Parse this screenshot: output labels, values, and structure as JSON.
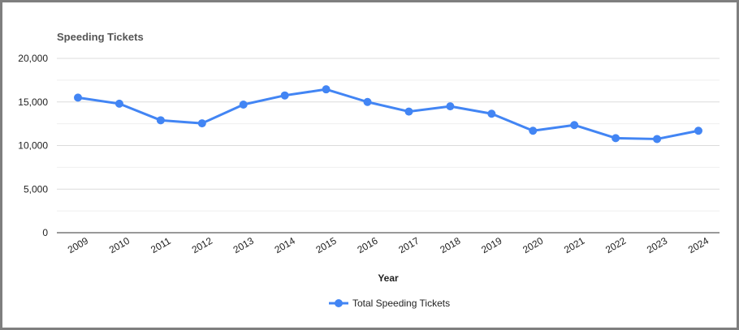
{
  "chart_data": {
    "type": "line",
    "title": "Speeding Tickets",
    "xlabel": "Year",
    "ylabel": "",
    "categories": [
      "2009",
      "2010",
      "2011",
      "2012",
      "2013",
      "2014",
      "2015",
      "2016",
      "2017",
      "2018",
      "2019",
      "2020",
      "2021",
      "2022",
      "2023",
      "2024"
    ],
    "series": [
      {
        "name": "Total Speeding Tickets",
        "values": [
          15500,
          14800,
          12900,
          12550,
          14700,
          15750,
          16450,
          15000,
          13900,
          14500,
          13650,
          11700,
          12350,
          10850,
          10750,
          11700
        ],
        "color": "#4285f4"
      }
    ],
    "ylim": [
      0,
      20000
    ],
    "yticks": [
      {
        "value": 0,
        "label": "0"
      },
      {
        "value": 5000,
        "label": "5,000"
      },
      {
        "value": 10000,
        "label": "10,000"
      },
      {
        "value": 15000,
        "label": "15,000"
      },
      {
        "value": 20000,
        "label": "20,000"
      }
    ],
    "grid": true,
    "legend_position": "bottom"
  }
}
